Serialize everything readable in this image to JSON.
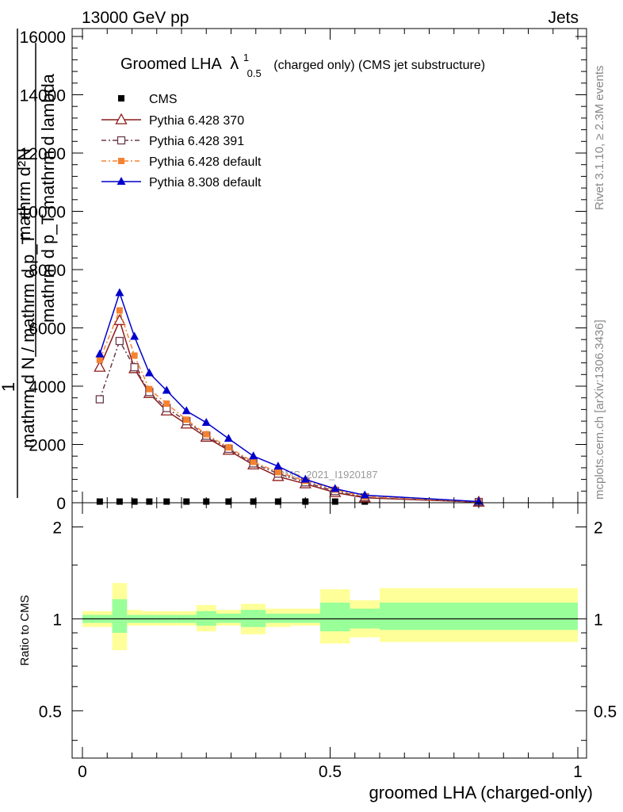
{
  "header": {
    "left": "13000 GeV pp",
    "right": "Jets",
    "side_rivet": "Rivet 3.1.10, ≥ 2.3M events",
    "side_mcplots": "mcplots.cern.ch [arXiv:1306.3436]",
    "watermark": "CMS_2021_I1920187"
  },
  "chart_data": [
    {
      "panel": "main",
      "type": "line",
      "title_main": "Groomed LHA",
      "title_symbol": "λ",
      "title_sup": "1",
      "title_sub": "0.5",
      "title_rest": "(charged only) (CMS jet substructure)",
      "ylabel_top": "mathrm d²N",
      "ylabel_bottom": "mathrm d p_T mathrm d lambda",
      "ylabel_left_num": "1",
      "ylabel_left_den": "mathrm d N / mathrm d p_T",
      "xlim": [
        0,
        1
      ],
      "ylim": [
        0,
        16000
      ],
      "y_ticks": [
        0,
        2000,
        4000,
        6000,
        8000,
        10000,
        12000,
        14000,
        16000
      ],
      "y_tick_labels": [
        "0",
        "2000",
        "4000",
        "6000",
        "8000",
        "10000",
        "12000",
        "14000",
        "16000"
      ],
      "x": [
        0.035,
        0.075,
        0.105,
        0.135,
        0.17,
        0.21,
        0.25,
        0.295,
        0.345,
        0.395,
        0.45,
        0.51,
        0.57,
        0.8
      ],
      "series": [
        {
          "name": "CMS",
          "color": "#000000",
          "marker": "square",
          "values": [
            40,
            40,
            40,
            40,
            40,
            40,
            40,
            40,
            40,
            40,
            40,
            40,
            40,
            40
          ]
        },
        {
          "name": "Pythia 6.428 370",
          "color": "#8b1a1a",
          "marker": "triangle-open",
          "dash": "",
          "values": [
            4650,
            6250,
            4600,
            3750,
            3150,
            2700,
            2250,
            1800,
            1300,
            900,
            650,
            350,
            170,
            20
          ]
        },
        {
          "name": "Pythia 6.428 391",
          "color": "#6b3a4a",
          "marker": "square-open",
          "dash": "6 3 2 3",
          "values": [
            3550,
            5550,
            4650,
            3800,
            3250,
            2800,
            2300,
            1850,
            1350,
            1000,
            700,
            400,
            190,
            25
          ]
        },
        {
          "name": "Pythia 6.428 default",
          "color": "#f58231",
          "marker": "square",
          "dash": "6 3 2 3",
          "values": [
            4900,
            6600,
            5050,
            3900,
            3400,
            2850,
            2350,
            1900,
            1400,
            1050,
            750,
            450,
            210,
            30
          ]
        },
        {
          "name": "Pythia 8.308 default",
          "color": "#0000cc",
          "marker": "triangle",
          "dash": "",
          "values": [
            5100,
            7200,
            5700,
            4450,
            3850,
            3150,
            2750,
            2200,
            1600,
            1250,
            800,
            480,
            260,
            40
          ]
        }
      ]
    },
    {
      "panel": "ratio",
      "type": "area",
      "ylabel": "Ratio to CMS",
      "xlabel": "groomed LHA (charged-only)",
      "xlim": [
        0,
        1
      ],
      "ylim": [
        0.35,
        2.4
      ],
      "y_ticks": [
        0.5,
        1,
        2
      ],
      "y_tick_labels": [
        "0.5",
        "1",
        "2"
      ],
      "x_ticks": [
        0,
        0.5,
        1
      ],
      "x_tick_labels": [
        "0",
        "0.5",
        "1"
      ],
      "bin_edges": [
        0,
        0.06,
        0.09,
        0.12,
        0.15,
        0.19,
        0.23,
        0.27,
        0.32,
        0.37,
        0.42,
        0.48,
        0.54,
        0.6,
        1.0
      ],
      "band_outer_lo": [
        0.94,
        0.79,
        0.95,
        0.95,
        0.95,
        0.95,
        0.91,
        0.95,
        0.89,
        0.94,
        0.95,
        0.83,
        0.87,
        0.84
      ],
      "band_outer_hi": [
        1.06,
        1.31,
        1.07,
        1.06,
        1.06,
        1.06,
        1.11,
        1.07,
        1.12,
        1.08,
        1.08,
        1.25,
        1.15,
        1.26
      ],
      "band_inner_lo": [
        0.97,
        0.9,
        0.97,
        0.97,
        0.97,
        0.97,
        0.95,
        0.97,
        0.94,
        0.97,
        0.97,
        0.91,
        0.93,
        0.92
      ],
      "band_inner_hi": [
        1.03,
        1.16,
        1.03,
        1.03,
        1.03,
        1.03,
        1.06,
        1.04,
        1.07,
        1.04,
        1.04,
        1.13,
        1.08,
        1.13
      ],
      "colors": {
        "outer": "#ffff99",
        "inner": "#99ff99",
        "ref": "#000000"
      }
    }
  ]
}
